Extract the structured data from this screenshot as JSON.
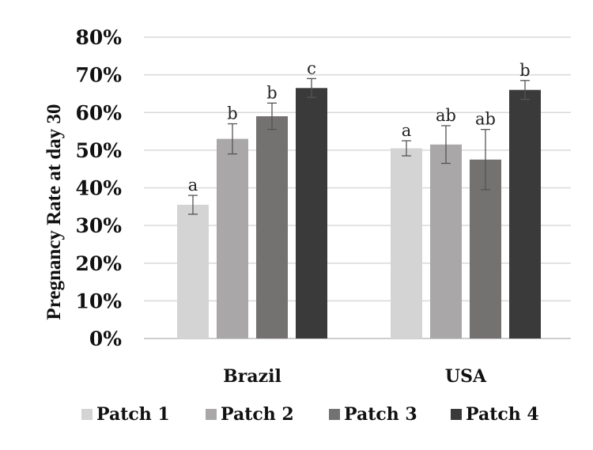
{
  "chart_data": {
    "type": "bar",
    "title": "",
    "xlabel": "",
    "ylabel": "Pregnancy Rate at day 30",
    "ylim": [
      0,
      80
    ],
    "y_tick_labels": [
      "0%",
      "10%",
      "20%",
      "30%",
      "40%",
      "50%",
      "60%",
      "70%",
      "80%"
    ],
    "y_ticks": [
      0,
      10,
      20,
      30,
      40,
      50,
      60,
      70,
      80
    ],
    "grid": true,
    "legend_position": "bottom",
    "categories": [
      "Brazil",
      "USA"
    ],
    "series": [
      {
        "name": "Patch 1",
        "color": "#d4d4d4",
        "values": [
          35.5,
          50.5
        ],
        "error": [
          2.5,
          2.0
        ],
        "letters": [
          "a",
          "a"
        ]
      },
      {
        "name": "Patch 2",
        "color": "#a9a7a7",
        "values": [
          53.0,
          51.5
        ],
        "error": [
          4.0,
          5.0
        ],
        "letters": [
          "b",
          "ab"
        ]
      },
      {
        "name": "Patch 3",
        "color": "#747171",
        "values": [
          59.0,
          47.5
        ],
        "error": [
          3.5,
          8.0
        ],
        "letters": [
          "b",
          "ab"
        ]
      },
      {
        "name": "Patch 4",
        "color": "#3a3a3a",
        "values": [
          66.5,
          66.0
        ],
        "error": [
          2.5,
          2.5
        ],
        "letters": [
          "c",
          "b"
        ]
      }
    ]
  }
}
